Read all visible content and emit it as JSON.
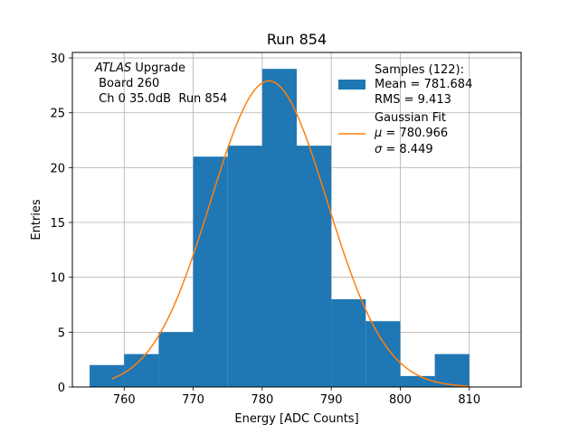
{
  "chart_data": {
    "type": "bar",
    "title": "Run 854",
    "xlabel": "Energy [ADC Counts]",
    "ylabel": "Entries",
    "xlim": [
      752.5,
      817.5
    ],
    "ylim": [
      0,
      30.5
    ],
    "xticks": [
      760,
      770,
      780,
      790,
      800,
      810
    ],
    "yticks": [
      0,
      5,
      10,
      15,
      20,
      25,
      30
    ],
    "grid": true,
    "colors": {
      "histogram": "#1f77b4",
      "fit": "#ff7f0e"
    },
    "annotation": {
      "italic": "ATLAS",
      "line1_rest": " Upgrade",
      "line2": " Board 260",
      "line3": " Ch 0 35.0dB  Run 854"
    },
    "histogram": {
      "bin_edges": [
        755,
        760,
        765,
        770,
        775,
        780,
        785,
        790,
        795,
        800,
        805,
        810
      ],
      "counts": [
        2,
        3,
        5,
        21,
        22,
        29,
        22,
        8,
        6,
        1,
        3
      ]
    },
    "fit": {
      "mu": 780.966,
      "sigma": 8.449,
      "amplitude": 27.9,
      "x_range": [
        758.2,
        809.8
      ]
    },
    "legend": {
      "position": "upper right",
      "samples_title": "Samples (122):",
      "samples_mean": "Mean = 781.684",
      "samples_rms": "RMS = 9.413",
      "fit_title": "Gaussian Fit",
      "fit_mu_value": " = 780.966",
      "fit_sigma_value": " = 8.449"
    }
  }
}
